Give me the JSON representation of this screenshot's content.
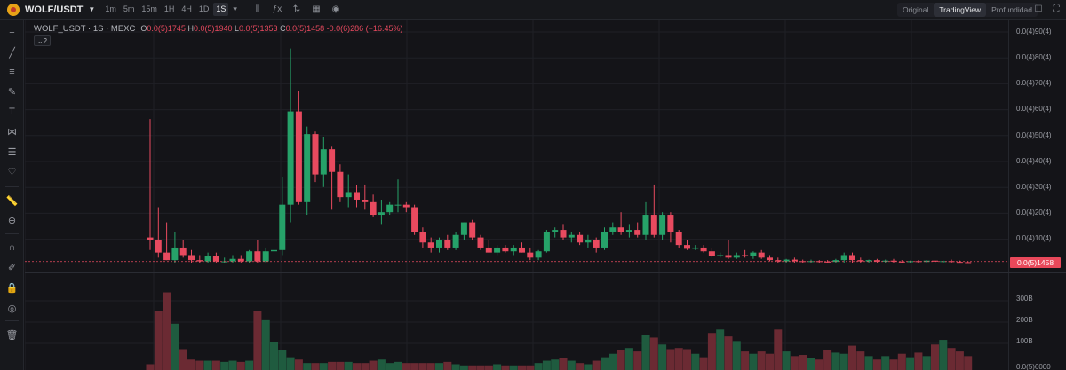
{
  "header": {
    "pair": "WOLF/USDT",
    "timeframes": [
      "1m",
      "5m",
      "15m",
      "1H",
      "4H",
      "1D",
      "1S"
    ],
    "active_timeframe": "1S",
    "views": [
      "Original",
      "TradingView",
      "Profundidad"
    ],
    "active_view": "TradingView"
  },
  "legend": {
    "symbol": "WOLF_USDT · 1S · MEXC",
    "o_label": "O",
    "o_value": "0.0(5)1745",
    "h_label": "H",
    "h_value": "0.0(5)1940",
    "l_label": "L",
    "l_value": "0.0(5)1353",
    "c_label": "C",
    "c_value": "0.0(5)1458",
    "change": "-0.0(6)286 (−16.45%)",
    "indicator_count": "2"
  },
  "price_axis": {
    "ticks": [
      "0.0(4)90(4)",
      "0.0(4)80(4)",
      "0.0(4)70(4)",
      "0.0(4)60(4)",
      "0.0(4)50(4)",
      "0.0(4)40(4)",
      "0.0(4)30(4)",
      "0.0(4)20(4)",
      "0.0(4)10(4)"
    ],
    "current_price": "0.0(5)1458",
    "volume_ticks": [
      "300B",
      "200B",
      "100B",
      "0.0(5)6000"
    ]
  },
  "colors": {
    "up": "#26a269",
    "down": "#e84a5f",
    "up_volume": "#1f5b3f",
    "down_volume": "#6b2a33",
    "grid": "#1f2026"
  },
  "chart_data": {
    "type": "candlestick",
    "note_units": "price in units of 1e-5 USDT; volume in billions",
    "candles": [
      {
        "o": 1.0,
        "h": 5.7,
        "l": 0.5,
        "c": 0.9
      },
      {
        "o": 0.9,
        "h": 2.2,
        "l": 0.2,
        "c": 0.4
      },
      {
        "o": 0.4,
        "h": 1.6,
        "l": 0.1,
        "c": 0.1
      },
      {
        "o": 0.1,
        "h": 1.2,
        "l": 0.0,
        "c": 0.6
      },
      {
        "o": 0.6,
        "h": 0.9,
        "l": 0.2,
        "c": 0.3
      },
      {
        "o": 0.3,
        "h": 0.5,
        "l": 0.0,
        "c": 0.1
      },
      {
        "o": 0.1,
        "h": 0.3,
        "l": 0.0,
        "c": 0.05
      },
      {
        "o": 0.05,
        "h": 0.4,
        "l": 0.0,
        "c": 0.25
      },
      {
        "o": 0.25,
        "h": 0.4,
        "l": 0.0,
        "c": 0.05
      },
      {
        "o": 0.05,
        "h": 0.2,
        "l": 0.0,
        "c": 0.05
      },
      {
        "o": 0.05,
        "h": 0.3,
        "l": 0.0,
        "c": 0.15
      },
      {
        "o": 0.15,
        "h": 0.3,
        "l": 0.0,
        "c": 0.05
      },
      {
        "o": 0.05,
        "h": 0.5,
        "l": 0.0,
        "c": 0.45
      },
      {
        "o": 0.45,
        "h": 0.9,
        "l": 0.0,
        "c": 0.05
      },
      {
        "o": 0.05,
        "h": 0.6,
        "l": 0.0,
        "c": 0.45
      },
      {
        "o": 0.45,
        "h": 2.9,
        "l": 0.0,
        "c": 0.5
      },
      {
        "o": 0.5,
        "h": 3.4,
        "l": 0.3,
        "c": 2.3
      },
      {
        "o": 2.3,
        "h": 8.5,
        "l": 1.6,
        "c": 6.0
      },
      {
        "o": 6.0,
        "h": 6.8,
        "l": 2.3,
        "c": 2.4
      },
      {
        "o": 2.4,
        "h": 5.4,
        "l": 1.9,
        "c": 5.1
      },
      {
        "o": 5.1,
        "h": 5.2,
        "l": 3.2,
        "c": 3.5
      },
      {
        "o": 3.5,
        "h": 5.0,
        "l": 3.0,
        "c": 4.5
      },
      {
        "o": 4.5,
        "h": 4.6,
        "l": 2.1,
        "c": 3.6
      },
      {
        "o": 3.6,
        "h": 3.9,
        "l": 2.4,
        "c": 2.6
      },
      {
        "o": 2.6,
        "h": 3.5,
        "l": 2.2,
        "c": 2.8
      },
      {
        "o": 2.8,
        "h": 3.1,
        "l": 2.2,
        "c": 2.5
      },
      {
        "o": 2.5,
        "h": 3.1,
        "l": 2.1,
        "c": 2.4
      },
      {
        "o": 2.4,
        "h": 2.7,
        "l": 1.8,
        "c": 1.9
      },
      {
        "o": 1.9,
        "h": 2.5,
        "l": 1.5,
        "c": 2.0
      },
      {
        "o": 2.0,
        "h": 2.4,
        "l": 1.9,
        "c": 2.3
      },
      {
        "o": 2.3,
        "h": 3.3,
        "l": 2.0,
        "c": 2.3
      },
      {
        "o": 2.3,
        "h": 2.4,
        "l": 2.0,
        "c": 2.2
      },
      {
        "o": 2.2,
        "h": 2.3,
        "l": 1.1,
        "c": 1.2
      },
      {
        "o": 1.2,
        "h": 1.4,
        "l": 0.6,
        "c": 0.8
      },
      {
        "o": 0.8,
        "h": 1.0,
        "l": 0.4,
        "c": 0.6
      },
      {
        "o": 0.6,
        "h": 1.0,
        "l": 0.4,
        "c": 0.9
      },
      {
        "o": 0.9,
        "h": 1.1,
        "l": 0.5,
        "c": 0.6
      },
      {
        "o": 0.6,
        "h": 1.2,
        "l": 0.5,
        "c": 1.1
      },
      {
        "o": 1.1,
        "h": 1.6,
        "l": 0.9,
        "c": 1.6
      },
      {
        "o": 1.6,
        "h": 1.7,
        "l": 0.9,
        "c": 1.0
      },
      {
        "o": 1.0,
        "h": 1.1,
        "l": 0.5,
        "c": 0.6
      },
      {
        "o": 0.6,
        "h": 0.9,
        "l": 0.4,
        "c": 0.4
      },
      {
        "o": 0.4,
        "h": 0.7,
        "l": 0.3,
        "c": 0.6
      },
      {
        "o": 0.6,
        "h": 0.7,
        "l": 0.4,
        "c": 0.45
      },
      {
        "o": 0.45,
        "h": 0.7,
        "l": 0.3,
        "c": 0.6
      },
      {
        "o": 0.6,
        "h": 0.8,
        "l": 0.4,
        "c": 0.4
      },
      {
        "o": 0.4,
        "h": 0.6,
        "l": 0.1,
        "c": 0.2
      },
      {
        "o": 0.2,
        "h": 0.5,
        "l": 0.1,
        "c": 0.45
      },
      {
        "o": 0.45,
        "h": 1.3,
        "l": 0.4,
        "c": 1.2
      },
      {
        "o": 1.2,
        "h": 1.4,
        "l": 1.0,
        "c": 1.3
      },
      {
        "o": 1.3,
        "h": 1.5,
        "l": 0.9,
        "c": 1.0
      },
      {
        "o": 1.0,
        "h": 1.2,
        "l": 0.8,
        "c": 1.1
      },
      {
        "o": 1.1,
        "h": 1.2,
        "l": 0.7,
        "c": 0.8
      },
      {
        "o": 0.8,
        "h": 1.1,
        "l": 0.6,
        "c": 0.9
      },
      {
        "o": 0.9,
        "h": 1.0,
        "l": 0.4,
        "c": 0.6
      },
      {
        "o": 0.6,
        "h": 1.4,
        "l": 0.5,
        "c": 1.2
      },
      {
        "o": 1.2,
        "h": 1.6,
        "l": 1.1,
        "c": 1.4
      },
      {
        "o": 1.4,
        "h": 2.0,
        "l": 1.1,
        "c": 1.2
      },
      {
        "o": 1.2,
        "h": 1.5,
        "l": 1.0,
        "c": 1.3
      },
      {
        "o": 1.3,
        "h": 1.6,
        "l": 1.0,
        "c": 1.1
      },
      {
        "o": 1.1,
        "h": 2.4,
        "l": 0.9,
        "c": 1.9
      },
      {
        "o": 1.9,
        "h": 3.1,
        "l": 1.0,
        "c": 1.1
      },
      {
        "o": 1.1,
        "h": 2.0,
        "l": 0.9,
        "c": 1.9
      },
      {
        "o": 1.9,
        "h": 2.0,
        "l": 0.8,
        "c": 1.2
      },
      {
        "o": 1.2,
        "h": 1.3,
        "l": 0.6,
        "c": 0.7
      },
      {
        "o": 0.7,
        "h": 0.9,
        "l": 0.5,
        "c": 0.55
      },
      {
        "o": 0.55,
        "h": 0.7,
        "l": 0.5,
        "c": 0.6
      },
      {
        "o": 0.6,
        "h": 0.7,
        "l": 0.4,
        "c": 0.45
      },
      {
        "o": 0.45,
        "h": 0.6,
        "l": 0.2,
        "c": 0.25
      },
      {
        "o": 0.25,
        "h": 0.4,
        "l": 0.2,
        "c": 0.3
      },
      {
        "o": 0.3,
        "h": 0.9,
        "l": 0.15,
        "c": 0.2
      },
      {
        "o": 0.2,
        "h": 0.4,
        "l": 0.15,
        "c": 0.3
      },
      {
        "o": 0.3,
        "h": 0.5,
        "l": 0.2,
        "c": 0.25
      },
      {
        "o": 0.25,
        "h": 0.45,
        "l": 0.15,
        "c": 0.4
      },
      {
        "o": 0.4,
        "h": 0.5,
        "l": 0.15,
        "c": 0.2
      },
      {
        "o": 0.2,
        "h": 0.3,
        "l": 0.05,
        "c": 0.1
      },
      {
        "o": 0.1,
        "h": 0.2,
        "l": 0.0,
        "c": 0.05
      },
      {
        "o": 0.05,
        "h": 0.15,
        "l": 0.0,
        "c": 0.12
      },
      {
        "o": 0.12,
        "h": 0.2,
        "l": 0.0,
        "c": 0.06
      },
      {
        "o": 0.06,
        "h": 0.12,
        "l": 0.0,
        "c": 0.04
      },
      {
        "o": 0.04,
        "h": 0.12,
        "l": 0.0,
        "c": 0.06
      },
      {
        "o": 0.06,
        "h": 0.1,
        "l": 0.0,
        "c": 0.04
      },
      {
        "o": 0.04,
        "h": 0.1,
        "l": 0.0,
        "c": 0.03
      },
      {
        "o": 0.03,
        "h": 0.15,
        "l": 0.0,
        "c": 0.1
      },
      {
        "o": 0.1,
        "h": 0.4,
        "l": 0.0,
        "c": 0.3
      },
      {
        "o": 0.3,
        "h": 0.4,
        "l": 0.0,
        "c": 0.1
      },
      {
        "o": 0.1,
        "h": 0.2,
        "l": 0.0,
        "c": 0.05
      },
      {
        "o": 0.05,
        "h": 0.12,
        "l": 0.0,
        "c": 0.1
      },
      {
        "o": 0.1,
        "h": 0.15,
        "l": 0.0,
        "c": 0.04
      },
      {
        "o": 0.04,
        "h": 0.12,
        "l": 0.0,
        "c": 0.08
      },
      {
        "o": 0.08,
        "h": 0.15,
        "l": 0.0,
        "c": 0.04
      },
      {
        "o": 0.04,
        "h": 0.1,
        "l": 0.0,
        "c": 0.02
      },
      {
        "o": 0.02,
        "h": 0.08,
        "l": 0.0,
        "c": 0.06
      },
      {
        "o": 0.06,
        "h": 0.1,
        "l": 0.0,
        "c": 0.03
      },
      {
        "o": 0.03,
        "h": 0.1,
        "l": 0.0,
        "c": 0.08
      },
      {
        "o": 0.08,
        "h": 0.12,
        "l": 0.0,
        "c": 0.04
      },
      {
        "o": 0.04,
        "h": 0.08,
        "l": 0.0,
        "c": 0.06
      },
      {
        "o": 0.06,
        "h": 0.12,
        "l": 0.0,
        "c": 0.03
      },
      {
        "o": 0.03,
        "h": 0.08,
        "l": 0.0,
        "c": 0.02
      },
      {
        "o": 0.02,
        "h": 0.06,
        "l": 0.0,
        "c": 0.01
      }
    ],
    "volume": [
      25,
      255,
      335,
      200,
      90,
      45,
      40,
      40,
      40,
      35,
      40,
      35,
      40,
      255,
      215,
      120,
      85,
      55,
      45,
      30,
      30,
      30,
      35,
      35,
      35,
      30,
      30,
      40,
      45,
      30,
      35,
      30,
      30,
      30,
      30,
      30,
      35,
      25,
      20,
      20,
      20,
      20,
      25,
      20,
      20,
      20,
      20,
      30,
      40,
      45,
      50,
      40,
      30,
      25,
      40,
      55,
      70,
      85,
      95,
      80,
      150,
      140,
      110,
      90,
      95,
      90,
      70,
      55,
      160,
      175,
      145,
      125,
      80,
      70,
      80,
      70,
      175,
      80,
      60,
      65,
      50,
      45,
      85,
      75,
      70,
      105,
      80,
      60,
      45,
      60,
      45,
      70,
      55,
      75,
      60,
      110,
      130,
      95,
      80,
      60,
      55
    ],
    "price_axis_range": [
      0,
      9.4
    ],
    "volume_axis_range": [
      0,
      360
    ]
  }
}
